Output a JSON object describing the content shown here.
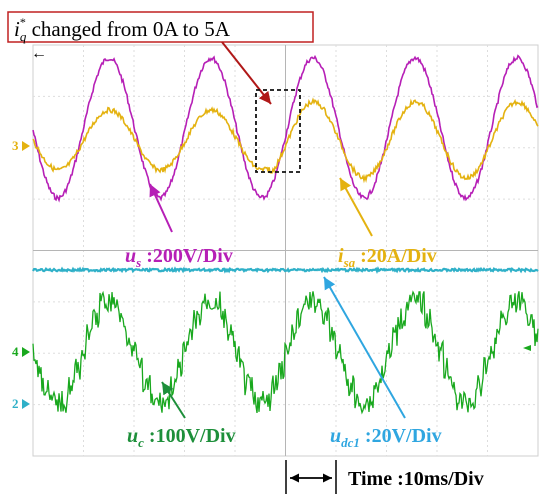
{
  "chart_data": {
    "type": "line",
    "annotation": {
      "symbol": "i",
      "subscript": "q",
      "superscript": "*",
      "text": " changed from 0A to 5A"
    },
    "channel_markers": [
      "3",
      "4",
      "2"
    ],
    "time_scale": "Time :10ms/Div",
    "trigger_marker": "←",
    "series": [
      {
        "symbol": "u",
        "subscript": "s",
        "scale": " :200V/Div",
        "color": "#b61fb6",
        "waveform": "sinusoid",
        "cycles_shown": 4.8
      },
      {
        "symbol": "i",
        "subscript": "sa",
        "scale": " :20A/Div",
        "color": "#e4b210",
        "waveform": "sinusoid",
        "amplitude_step": "at 0A to 5A change"
      },
      {
        "symbol": "u",
        "subscript": "dc1",
        "scale": " :20V/Div",
        "color": "#2fb0c8",
        "waveform": "dc"
      },
      {
        "symbol": "u",
        "subscript": "c",
        "scale": " :100V/Div",
        "color": "#19a81e",
        "waveform": "multilevel staircase"
      }
    ],
    "grid": true,
    "legend": "inline labels with arrows"
  }
}
